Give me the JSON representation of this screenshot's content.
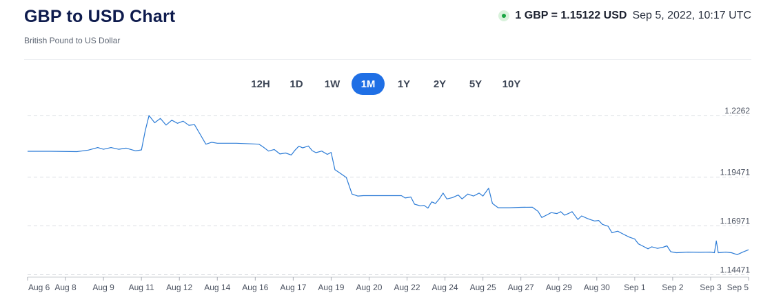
{
  "header": {
    "title": "GBP to USD Chart",
    "subtitle": "British Pound to US Dollar",
    "rate": "1 GBP = 1.15122 USD",
    "timestamp": "Sep 5, 2022, 10:17 UTC"
  },
  "ranges": [
    {
      "label": "12H",
      "active": false
    },
    {
      "label": "1D",
      "active": false
    },
    {
      "label": "1W",
      "active": false
    },
    {
      "label": "1M",
      "active": true
    },
    {
      "label": "1Y",
      "active": false
    },
    {
      "label": "2Y",
      "active": false
    },
    {
      "label": "5Y",
      "active": false
    },
    {
      "label": "10Y",
      "active": false
    }
  ],
  "colors": {
    "line": "#2b7bd6",
    "grid": "#d9dce1",
    "active_range": "#1f6fe5",
    "live": "#18a542"
  },
  "chart_data": {
    "type": "line",
    "title": "",
    "xlabel": "",
    "ylabel": "",
    "y_ticks": [
      {
        "value": 1.2262,
        "label": "1.2262"
      },
      {
        "value": 1.19471,
        "label": "1.19471"
      },
      {
        "value": 1.16971,
        "label": "1.16971"
      },
      {
        "value": 1.14471,
        "label": "1.14471"
      }
    ],
    "ylim": [
      1.1435,
      1.229
    ],
    "x_ticks": [
      "Aug 6",
      "Aug 8",
      "Aug 9",
      "Aug 11",
      "Aug 12",
      "Aug 14",
      "Aug 16",
      "Aug 17",
      "Aug 19",
      "Aug 20",
      "Aug 22",
      "Aug 24",
      "Aug 25",
      "Aug 27",
      "Aug 29",
      "Aug 30",
      "Sep 1",
      "Sep 2",
      "Sep 3",
      "Sep 5"
    ],
    "grid": true,
    "series": [
      {
        "points": [
          [
            0,
            1.2079
          ],
          [
            0.6,
            1.2079
          ],
          [
            1.3,
            1.2077
          ],
          [
            1.6,
            1.2085
          ],
          [
            1.85,
            1.2098
          ],
          [
            2.0,
            1.2089
          ],
          [
            2.2,
            1.2098
          ],
          [
            2.4,
            1.2089
          ],
          [
            2.6,
            1.2095
          ],
          [
            2.85,
            1.2081
          ],
          [
            3.0,
            1.2086
          ],
          [
            3.1,
            1.2184
          ],
          [
            3.2,
            1.2262
          ],
          [
            3.35,
            1.2225
          ],
          [
            3.5,
            1.2247
          ],
          [
            3.65,
            1.2213
          ],
          [
            3.8,
            1.2238
          ],
          [
            3.95,
            1.2222
          ],
          [
            4.1,
            1.2233
          ],
          [
            4.25,
            1.2212
          ],
          [
            4.4,
            1.2215
          ],
          [
            4.55,
            1.2165
          ],
          [
            4.7,
            1.2115
          ],
          [
            4.85,
            1.2125
          ],
          [
            5.0,
            1.212
          ],
          [
            5.5,
            1.212
          ],
          [
            5.9,
            1.2117
          ],
          [
            6.1,
            1.2115
          ],
          [
            6.2,
            1.2102
          ],
          [
            6.35,
            1.208
          ],
          [
            6.5,
            1.2088
          ],
          [
            6.65,
            1.2065
          ],
          [
            6.8,
            1.207
          ],
          [
            6.95,
            1.206
          ],
          [
            7.05,
            1.2085
          ],
          [
            7.15,
            1.2105
          ],
          [
            7.25,
            1.2096
          ],
          [
            7.4,
            1.2106
          ],
          [
            7.5,
            1.2082
          ],
          [
            7.6,
            1.2072
          ],
          [
            7.75,
            1.208
          ],
          [
            7.9,
            1.2063
          ],
          [
            8.0,
            1.2073
          ],
          [
            8.1,
            1.1985
          ],
          [
            8.25,
            1.1965
          ],
          [
            8.4,
            1.1945
          ],
          [
            8.55,
            1.186
          ],
          [
            8.7,
            1.185
          ],
          [
            8.85,
            1.1852
          ],
          [
            9.5,
            1.1852
          ],
          [
            9.85,
            1.1852
          ],
          [
            9.95,
            1.184
          ],
          [
            10.1,
            1.1845
          ],
          [
            10.2,
            1.1808
          ],
          [
            10.35,
            1.18
          ],
          [
            10.45,
            1.1802
          ],
          [
            10.55,
            1.1788
          ],
          [
            10.65,
            1.182
          ],
          [
            10.75,
            1.1812
          ],
          [
            10.85,
            1.1835
          ],
          [
            10.95,
            1.1865
          ],
          [
            11.05,
            1.1835
          ],
          [
            11.2,
            1.1842
          ],
          [
            11.35,
            1.1855
          ],
          [
            11.45,
            1.1835
          ],
          [
            11.6,
            1.186
          ],
          [
            11.75,
            1.185
          ],
          [
            11.9,
            1.1865
          ],
          [
            12.0,
            1.185
          ],
          [
            12.15,
            1.189
          ],
          [
            12.25,
            1.1812
          ],
          [
            12.4,
            1.179
          ],
          [
            12.7,
            1.179
          ],
          [
            13.0,
            1.1792
          ],
          [
            13.3,
            1.1793
          ],
          [
            13.45,
            1.1772
          ],
          [
            13.55,
            1.174
          ],
          [
            13.7,
            1.1755
          ],
          [
            13.8,
            1.1765
          ],
          [
            13.95,
            1.176
          ],
          [
            14.05,
            1.177
          ],
          [
            14.15,
            1.1752
          ],
          [
            14.25,
            1.176
          ],
          [
            14.35,
            1.177
          ],
          [
            14.5,
            1.173
          ],
          [
            14.6,
            1.1748
          ],
          [
            14.75,
            1.1735
          ],
          [
            14.85,
            1.1728
          ],
          [
            14.95,
            1.1722
          ],
          [
            15.05,
            1.1725
          ],
          [
            15.15,
            1.1705
          ],
          [
            15.3,
            1.1695
          ],
          [
            15.4,
            1.1662
          ],
          [
            15.55,
            1.167
          ],
          [
            15.7,
            1.1655
          ],
          [
            15.85,
            1.164
          ],
          [
            16.0,
            1.163
          ],
          [
            16.1,
            1.1605
          ],
          [
            16.2,
            1.1595
          ],
          [
            16.35,
            1.158
          ],
          [
            16.45,
            1.159
          ],
          [
            16.6,
            1.1582
          ],
          [
            16.75,
            1.1588
          ],
          [
            16.85,
            1.1595
          ],
          [
            16.95,
            1.1565
          ],
          [
            17.1,
            1.156
          ],
          [
            17.4,
            1.1563
          ],
          [
            17.7,
            1.1562
          ],
          [
            18.0,
            1.1563
          ],
          [
            18.1,
            1.156
          ],
          [
            18.15,
            1.162
          ],
          [
            18.2,
            1.156
          ],
          [
            18.4,
            1.1563
          ],
          [
            18.55,
            1.156
          ],
          [
            18.7,
            1.155
          ],
          [
            18.85,
            1.1563
          ],
          [
            19.0,
            1.1575
          ]
        ]
      }
    ]
  }
}
